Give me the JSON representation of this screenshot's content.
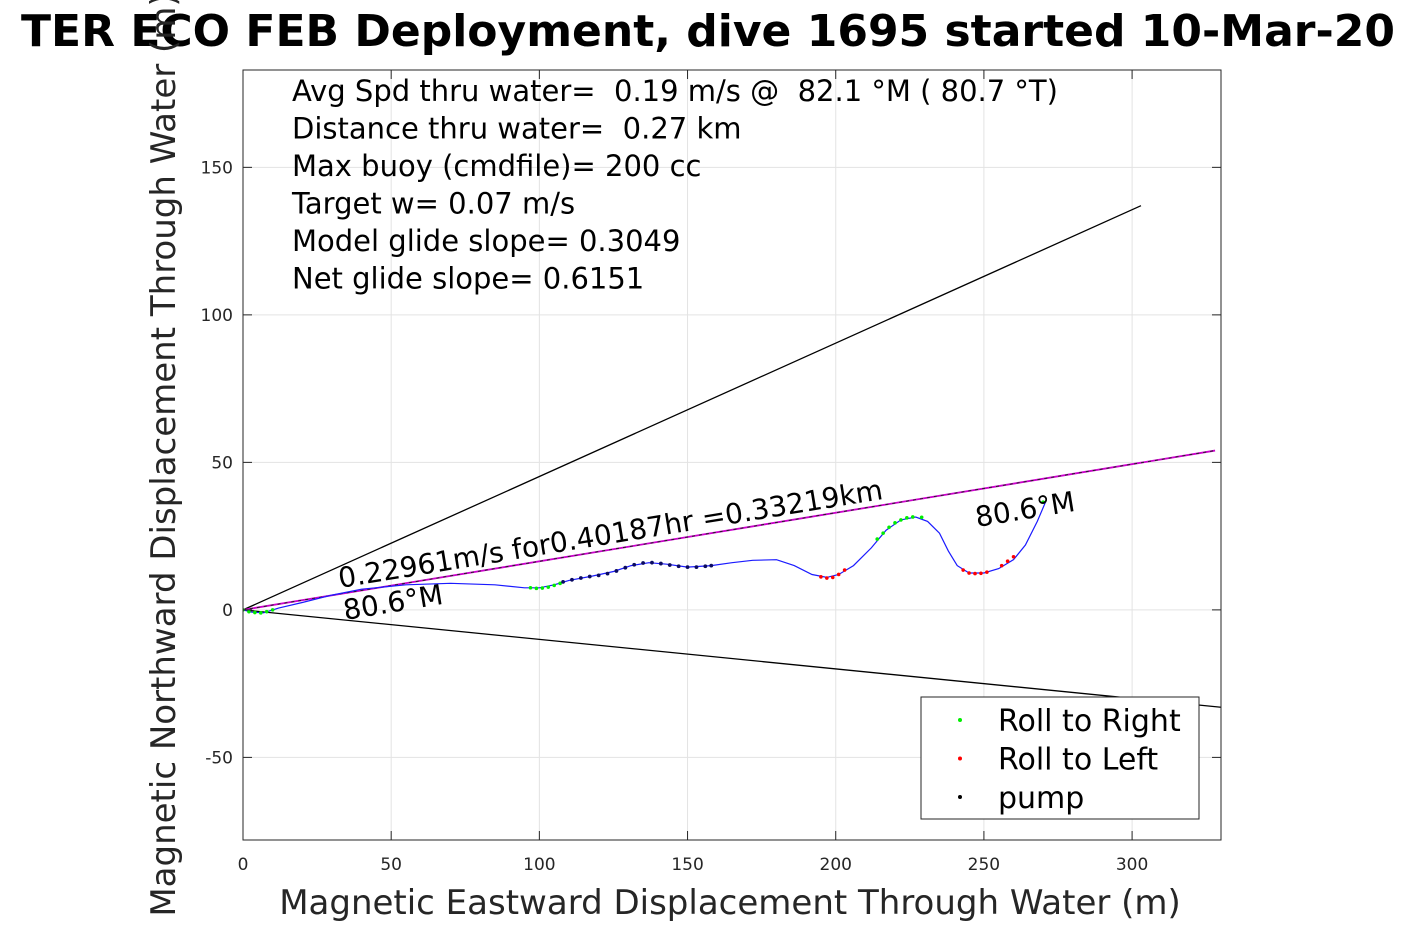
{
  "chart_data": {
    "type": "scatter",
    "title": "TER ECO FEB Deployment, dive 1695 started 10-Mar-20",
    "xlabel": "Magnetic Eastward Displacement Through Water (m)",
    "ylabel": "Magnetic Northward Displacement Through Water (m)",
    "xlim": [
      0,
      330
    ],
    "ylim": [
      -78,
      183
    ],
    "xticks": [
      0,
      50,
      100,
      150,
      200,
      250,
      300
    ],
    "yticks": [
      -50,
      0,
      50,
      100,
      150
    ],
    "grid": true,
    "stats": [
      "Avg Spd thru water=  0.19 m/s @  82.1 °M ( 80.7 °T)",
      "Distance thru water=  0.27 km",
      "Max buoy (cmdfile)= 200 cc",
      "Target w= 0.07 m/s",
      "Model glide slope= 0.3049",
      "Net glide slope= 0.6151"
    ],
    "annotations": {
      "net_track": "0.22961m/s for0.40187hr =0.33219km",
      "heading_start": "80.6°M",
      "heading_end": "80.6°M"
    },
    "lines": {
      "cone_upper": [
        [
          0,
          0
        ],
        [
          303,
          137
        ]
      ],
      "cone_lower": [
        [
          0,
          0
        ],
        [
          330,
          -33
        ]
      ],
      "net_track": [
        [
          0,
          0
        ],
        [
          328,
          54
        ]
      ]
    },
    "track": [
      [
        0,
        0
      ],
      [
        3,
        -0.8
      ],
      [
        7,
        -1
      ],
      [
        12,
        0.6
      ],
      [
        20,
        2.5
      ],
      [
        30,
        5
      ],
      [
        40,
        7
      ],
      [
        55,
        8.5
      ],
      [
        70,
        9
      ],
      [
        85,
        8.5
      ],
      [
        95,
        7.5
      ],
      [
        100,
        7.5
      ],
      [
        105,
        8.5
      ],
      [
        110,
        10
      ],
      [
        118,
        11.5
      ],
      [
        125,
        13
      ],
      [
        131,
        15
      ],
      [
        137,
        16
      ],
      [
        143,
        15.5
      ],
      [
        150,
        14.5
      ],
      [
        158,
        15
      ],
      [
        165,
        16
      ],
      [
        172,
        16.8
      ],
      [
        180,
        17
      ],
      [
        186,
        15
      ],
      [
        192,
        12
      ],
      [
        197,
        11
      ],
      [
        201,
        12
      ],
      [
        206,
        15
      ],
      [
        212,
        21
      ],
      [
        217,
        27
      ],
      [
        222,
        30.5
      ],
      [
        227,
        31.5
      ],
      [
        231,
        30
      ],
      [
        235,
        26
      ],
      [
        238,
        20
      ],
      [
        241,
        15
      ],
      [
        245,
        12.5
      ],
      [
        250,
        12.5
      ],
      [
        255,
        14
      ],
      [
        260,
        17
      ],
      [
        264,
        22
      ],
      [
        268,
        30
      ],
      [
        271,
        37
      ]
    ],
    "series": [
      {
        "name": "Roll to Right",
        "color": "#00ee00",
        "points": [
          [
            0,
            0
          ],
          [
            2,
            -0.6
          ],
          [
            4,
            -0.9
          ],
          [
            6,
            -1
          ],
          [
            8,
            -0.6
          ],
          [
            10,
            0
          ],
          [
            97,
            7.5
          ],
          [
            99,
            7.3
          ],
          [
            101,
            7.4
          ],
          [
            103,
            7.7
          ],
          [
            105,
            8.3
          ],
          [
            107,
            9
          ],
          [
            214,
            24
          ],
          [
            216,
            26
          ],
          [
            218,
            28
          ],
          [
            220,
            29.5
          ],
          [
            222,
            30.5
          ],
          [
            224,
            31.2
          ],
          [
            226,
            31.5
          ],
          [
            229,
            31.4
          ],
          [
            270,
            36.5
          ]
        ]
      },
      {
        "name": "Roll to Left",
        "color": "#ff0000",
        "points": [
          [
            -1,
            0
          ],
          [
            195,
            11.2
          ],
          [
            197,
            10.8
          ],
          [
            199,
            11
          ],
          [
            201,
            12
          ],
          [
            203,
            13.5
          ],
          [
            243,
            13.5
          ],
          [
            245,
            12.5
          ],
          [
            247,
            12.3
          ],
          [
            249,
            12.4
          ],
          [
            251,
            12.8
          ],
          [
            256,
            15
          ],
          [
            258,
            16.5
          ],
          [
            260,
            18
          ]
        ]
      },
      {
        "name": "pump",
        "color": "#000000",
        "points": [
          [
            108,
            9.5
          ],
          [
            111,
            10.2
          ],
          [
            114,
            10.8
          ],
          [
            117,
            11.3
          ],
          [
            120,
            11.7
          ],
          [
            123,
            12.3
          ],
          [
            126,
            13.2
          ],
          [
            129,
            14.3
          ],
          [
            132,
            15.3
          ],
          [
            135,
            15.9
          ],
          [
            138,
            16
          ],
          [
            141,
            15.7
          ],
          [
            144,
            15.2
          ],
          [
            147,
            14.8
          ],
          [
            150,
            14.5
          ],
          [
            153,
            14.5
          ],
          [
            156,
            14.8
          ],
          [
            158,
            15
          ]
        ]
      }
    ],
    "legend_position": "bottom-right"
  }
}
